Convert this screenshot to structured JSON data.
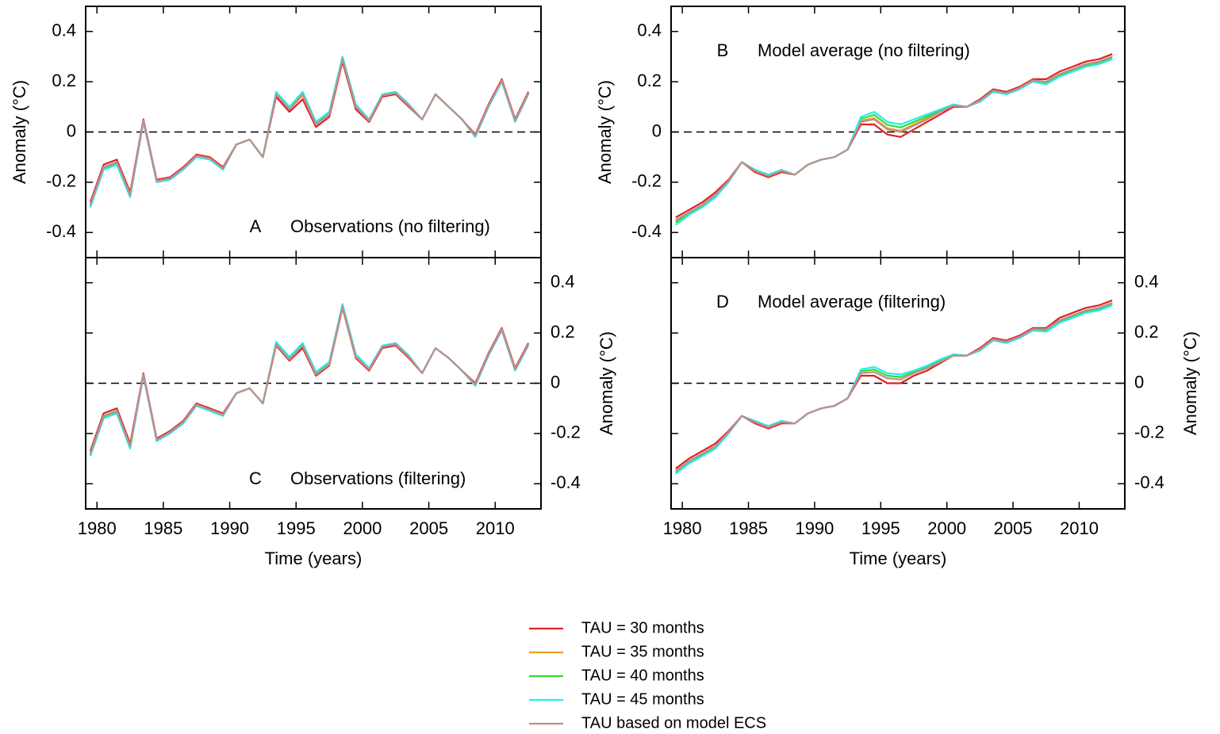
{
  "chart_data": [
    {
      "type": "line",
      "label": "A",
      "title": "Observations (no filtering)",
      "ylabel": "Anomaly (°C)",
      "yaxis_side": "left",
      "show_xticklabels": false,
      "x": [
        1979.5,
        1980.5,
        1981.5,
        1982.5,
        1983.5,
        1984.5,
        1985.5,
        1986.5,
        1987.5,
        1988.5,
        1989.5,
        1990.5,
        1991.5,
        1992.5,
        1993.5,
        1994.5,
        1995.5,
        1996.5,
        1997.5,
        1998.5,
        1999.5,
        2000.5,
        2001.5,
        2002.5,
        2003.5,
        2004.5,
        2005.5,
        2006.5,
        2007.5,
        2008.5,
        2009.5,
        2010.5,
        2011.5,
        2012.5
      ],
      "xlim": [
        1979.15,
        2013.45
      ],
      "xticks": [
        1980,
        1985,
        1990,
        1995,
        2000,
        2005,
        2010
      ],
      "ylim": [
        -0.5,
        0.5
      ],
      "yticks": [
        -0.4,
        -0.2,
        0,
        0.2,
        0.4
      ],
      "series": [
        {
          "name": "TAU = 30 months",
          "color": "#dd2222",
          "values": [
            -0.28,
            -0.13,
            -0.11,
            -0.24,
            0.05,
            -0.19,
            -0.18,
            -0.14,
            -0.09,
            -0.1,
            -0.14,
            -0.05,
            -0.03,
            -0.1,
            0.14,
            0.08,
            0.13,
            0.02,
            0.06,
            0.28,
            0.09,
            0.04,
            0.14,
            0.15,
            0.1,
            0.05,
            0.15,
            0.1,
            0.05,
            -0.01,
            0.11,
            0.21,
            0.05,
            0.16
          ]
        },
        {
          "name": "TAU = 35 months",
          "color": "#f0a020",
          "values": [
            -0.29,
            -0.14,
            -0.12,
            -0.25,
            0.045,
            -0.195,
            -0.185,
            -0.145,
            -0.095,
            -0.105,
            -0.145,
            -0.05,
            -0.03,
            -0.1,
            0.15,
            0.09,
            0.145,
            0.03,
            0.07,
            0.29,
            0.1,
            0.045,
            0.145,
            0.155,
            0.105,
            0.05,
            0.15,
            0.1,
            0.05,
            -0.015,
            0.105,
            0.205,
            0.045,
            0.155
          ]
        },
        {
          "name": "TAU = 40 months",
          "color": "#33dd33",
          "values": [
            -0.295,
            -0.145,
            -0.125,
            -0.255,
            0.042,
            -0.198,
            -0.188,
            -0.148,
            -0.098,
            -0.108,
            -0.148,
            -0.05,
            -0.03,
            -0.1,
            0.155,
            0.095,
            0.155,
            0.035,
            0.075,
            0.295,
            0.105,
            0.048,
            0.148,
            0.158,
            0.108,
            0.05,
            0.15,
            0.1,
            0.05,
            -0.018,
            0.102,
            0.202,
            0.042,
            0.152
          ]
        },
        {
          "name": "TAU = 45 months",
          "color": "#22eeee",
          "values": [
            -0.3,
            -0.15,
            -0.13,
            -0.26,
            0.04,
            -0.2,
            -0.19,
            -0.15,
            -0.1,
            -0.11,
            -0.15,
            -0.05,
            -0.03,
            -0.1,
            0.16,
            0.1,
            0.16,
            0.04,
            0.08,
            0.3,
            0.11,
            0.05,
            0.15,
            0.16,
            0.11,
            0.05,
            0.15,
            0.1,
            0.05,
            -0.02,
            0.1,
            0.2,
            0.04,
            0.15
          ]
        },
        {
          "name": "TAU based on model ECS",
          "color": "#bb9090",
          "values": [
            -0.29,
            -0.14,
            -0.12,
            -0.25,
            0.045,
            -0.195,
            -0.185,
            -0.145,
            -0.095,
            -0.105,
            -0.145,
            -0.05,
            -0.03,
            -0.1,
            0.15,
            0.09,
            0.15,
            0.03,
            0.07,
            0.29,
            0.1,
            0.045,
            0.145,
            0.155,
            0.105,
            0.05,
            0.15,
            0.1,
            0.05,
            -0.015,
            0.105,
            0.205,
            0.045,
            0.155
          ]
        }
      ]
    },
    {
      "type": "line",
      "label": "B",
      "title": "Model average (no filtering)",
      "ylabel": "Anomaly (°C)",
      "yaxis_side": "left",
      "show_xticklabels": false,
      "x": [
        1979.5,
        1980.5,
        1981.5,
        1982.5,
        1983.5,
        1984.5,
        1985.5,
        1986.5,
        1987.5,
        1988.5,
        1989.5,
        1990.5,
        1991.5,
        1992.5,
        1993.5,
        1994.5,
        1995.5,
        1996.5,
        1997.5,
        1998.5,
        1999.5,
        2000.5,
        2001.5,
        2002.5,
        2003.5,
        2004.5,
        2005.5,
        2006.5,
        2007.5,
        2008.5,
        2009.5,
        2010.5,
        2011.5,
        2012.5
      ],
      "xlim": [
        1979.15,
        2013.45
      ],
      "xticks": [
        1980,
        1985,
        1990,
        1995,
        2000,
        2005,
        2010
      ],
      "ylim": [
        -0.5,
        0.5
      ],
      "yticks": [
        -0.4,
        -0.2,
        0,
        0.2,
        0.4
      ],
      "series": [
        {
          "color": "#dd2222",
          "values": [
            -0.34,
            -0.31,
            -0.28,
            -0.24,
            -0.19,
            -0.12,
            -0.16,
            -0.18,
            -0.16,
            -0.17,
            -0.13,
            -0.11,
            -0.1,
            -0.07,
            0.03,
            0.03,
            -0.01,
            -0.02,
            0.01,
            0.04,
            0.07,
            0.1,
            0.1,
            0.13,
            0.17,
            0.16,
            0.18,
            0.21,
            0.21,
            0.24,
            0.26,
            0.28,
            0.29,
            0.31
          ]
        },
        {
          "color": "#f0a020",
          "values": [
            -0.355,
            -0.32,
            -0.29,
            -0.25,
            -0.195,
            -0.12,
            -0.155,
            -0.175,
            -0.155,
            -0.17,
            -0.13,
            -0.11,
            -0.1,
            -0.07,
            0.045,
            0.055,
            0.015,
            0.005,
            0.03,
            0.055,
            0.08,
            0.105,
            0.1,
            0.125,
            0.165,
            0.155,
            0.175,
            0.205,
            0.2,
            0.23,
            0.25,
            0.27,
            0.28,
            0.3
          ]
        },
        {
          "color": "#33dd33",
          "values": [
            -0.36,
            -0.325,
            -0.295,
            -0.255,
            -0.198,
            -0.12,
            -0.152,
            -0.172,
            -0.152,
            -0.17,
            -0.13,
            -0.11,
            -0.1,
            -0.07,
            0.052,
            0.068,
            0.028,
            0.018,
            0.04,
            0.062,
            0.085,
            0.108,
            0.1,
            0.122,
            0.162,
            0.152,
            0.172,
            0.202,
            0.195,
            0.225,
            0.245,
            0.265,
            0.275,
            0.295
          ]
        },
        {
          "color": "#22eeee",
          "values": [
            -0.37,
            -0.33,
            -0.3,
            -0.26,
            -0.2,
            -0.12,
            -0.15,
            -0.17,
            -0.15,
            -0.17,
            -0.13,
            -0.11,
            -0.1,
            -0.07,
            0.06,
            0.08,
            0.04,
            0.03,
            0.05,
            0.07,
            0.09,
            0.11,
            0.1,
            0.12,
            0.16,
            0.15,
            0.17,
            0.2,
            0.19,
            0.22,
            0.24,
            0.26,
            0.27,
            0.29
          ]
        },
        {
          "color": "#bb9090",
          "values": [
            -0.35,
            -0.32,
            -0.29,
            -0.25,
            -0.195,
            -0.12,
            -0.155,
            -0.175,
            -0.155,
            -0.17,
            -0.13,
            -0.11,
            -0.1,
            -0.07,
            0.04,
            0.05,
            0.01,
            0.0,
            0.025,
            0.05,
            0.08,
            0.105,
            0.1,
            0.125,
            0.165,
            0.155,
            0.175,
            0.205,
            0.2,
            0.23,
            0.25,
            0.27,
            0.28,
            0.3
          ]
        }
      ]
    },
    {
      "type": "line",
      "label": "C",
      "title": "Observations (filtering)",
      "ylabel": "Anomaly (°C)",
      "yaxis_side": "right",
      "show_xticklabels": true,
      "xlabel": "Time (years)",
      "x": [
        1979.5,
        1980.5,
        1981.5,
        1982.5,
        1983.5,
        1984.5,
        1985.5,
        1986.5,
        1987.5,
        1988.5,
        1989.5,
        1990.5,
        1991.5,
        1992.5,
        1993.5,
        1994.5,
        1995.5,
        1996.5,
        1997.5,
        1998.5,
        1999.5,
        2000.5,
        2001.5,
        2002.5,
        2003.5,
        2004.5,
        2005.5,
        2006.5,
        2007.5,
        2008.5,
        2009.5,
        2010.5,
        2011.5,
        2012.5
      ],
      "xlim": [
        1979.15,
        2013.45
      ],
      "xticks": [
        1980,
        1985,
        1990,
        1995,
        2000,
        2005,
        2010
      ],
      "ylim": [
        -0.5,
        0.5
      ],
      "yticks": [
        -0.4,
        -0.2,
        0,
        0.2,
        0.4
      ],
      "series": [
        {
          "color": "#dd2222",
          "values": [
            -0.27,
            -0.12,
            -0.1,
            -0.24,
            0.04,
            -0.22,
            -0.19,
            -0.15,
            -0.08,
            -0.1,
            -0.12,
            -0.04,
            -0.02,
            -0.08,
            0.15,
            0.09,
            0.14,
            0.03,
            0.07,
            0.3,
            0.1,
            0.05,
            0.14,
            0.15,
            0.1,
            0.04,
            0.14,
            0.1,
            0.05,
            0.0,
            0.12,
            0.22,
            0.06,
            0.16
          ]
        },
        {
          "color": "#f0a020",
          "values": [
            -0.28,
            -0.13,
            -0.11,
            -0.25,
            0.035,
            -0.225,
            -0.195,
            -0.155,
            -0.085,
            -0.105,
            -0.125,
            -0.04,
            -0.02,
            -0.08,
            0.155,
            0.095,
            0.15,
            0.035,
            0.075,
            0.305,
            0.105,
            0.055,
            0.145,
            0.155,
            0.105,
            0.04,
            0.14,
            0.1,
            0.05,
            -0.005,
            0.115,
            0.215,
            0.055,
            0.155
          ]
        },
        {
          "color": "#33dd33",
          "values": [
            -0.285,
            -0.135,
            -0.115,
            -0.255,
            0.032,
            -0.228,
            -0.198,
            -0.158,
            -0.088,
            -0.108,
            -0.128,
            -0.04,
            -0.02,
            -0.08,
            0.16,
            0.1,
            0.155,
            0.04,
            0.08,
            0.31,
            0.11,
            0.058,
            0.148,
            0.158,
            0.108,
            0.04,
            0.14,
            0.1,
            0.05,
            -0.008,
            0.112,
            0.212,
            0.052,
            0.152
          ]
        },
        {
          "color": "#22eeee",
          "values": [
            -0.29,
            -0.14,
            -0.12,
            -0.26,
            0.03,
            -0.23,
            -0.2,
            -0.16,
            -0.09,
            -0.11,
            -0.13,
            -0.04,
            -0.02,
            -0.08,
            0.165,
            0.105,
            0.16,
            0.045,
            0.085,
            0.315,
            0.115,
            0.06,
            0.15,
            0.16,
            0.11,
            0.04,
            0.14,
            0.1,
            0.05,
            -0.01,
            0.11,
            0.21,
            0.05,
            0.15
          ]
        },
        {
          "color": "#bb9090",
          "values": [
            -0.28,
            -0.13,
            -0.11,
            -0.25,
            0.035,
            -0.225,
            -0.195,
            -0.155,
            -0.085,
            -0.105,
            -0.125,
            -0.04,
            -0.02,
            -0.08,
            0.155,
            0.095,
            0.15,
            0.035,
            0.075,
            0.305,
            0.105,
            0.055,
            0.145,
            0.155,
            0.105,
            0.04,
            0.14,
            0.1,
            0.05,
            -0.005,
            0.115,
            0.215,
            0.055,
            0.155
          ]
        }
      ]
    },
    {
      "type": "line",
      "label": "D",
      "title": "Model average (filtering)",
      "ylabel": "Anomaly (°C)",
      "yaxis_side": "right",
      "show_xticklabels": true,
      "xlabel": "Time (years)",
      "x": [
        1979.5,
        1980.5,
        1981.5,
        1982.5,
        1983.5,
        1984.5,
        1985.5,
        1986.5,
        1987.5,
        1988.5,
        1989.5,
        1990.5,
        1991.5,
        1992.5,
        1993.5,
        1994.5,
        1995.5,
        1996.5,
        1997.5,
        1998.5,
        1999.5,
        2000.5,
        2001.5,
        2002.5,
        2003.5,
        2004.5,
        2005.5,
        2006.5,
        2007.5,
        2008.5,
        2009.5,
        2010.5,
        2011.5,
        2012.5
      ],
      "xlim": [
        1979.15,
        2013.45
      ],
      "xticks": [
        1980,
        1985,
        1990,
        1995,
        2000,
        2005,
        2010
      ],
      "ylim": [
        -0.5,
        0.5
      ],
      "yticks": [
        -0.4,
        -0.2,
        0,
        0.2,
        0.4
      ],
      "series": [
        {
          "color": "#dd2222",
          "values": [
            -0.34,
            -0.3,
            -0.27,
            -0.24,
            -0.19,
            -0.13,
            -0.16,
            -0.18,
            -0.16,
            -0.16,
            -0.12,
            -0.1,
            -0.09,
            -0.06,
            0.03,
            0.03,
            0.0,
            0.0,
            0.03,
            0.05,
            0.08,
            0.11,
            0.11,
            0.14,
            0.18,
            0.17,
            0.19,
            0.22,
            0.22,
            0.26,
            0.28,
            0.3,
            0.31,
            0.33
          ]
        },
        {
          "color": "#f0a020",
          "values": [
            -0.35,
            -0.31,
            -0.28,
            -0.25,
            -0.195,
            -0.13,
            -0.155,
            -0.175,
            -0.155,
            -0.16,
            -0.12,
            -0.1,
            -0.09,
            -0.06,
            0.04,
            0.045,
            0.02,
            0.015,
            0.04,
            0.06,
            0.085,
            0.11,
            0.11,
            0.135,
            0.175,
            0.165,
            0.185,
            0.215,
            0.215,
            0.25,
            0.27,
            0.29,
            0.3,
            0.32
          ]
        },
        {
          "color": "#33dd33",
          "values": [
            -0.355,
            -0.315,
            -0.285,
            -0.255,
            -0.198,
            -0.13,
            -0.152,
            -0.172,
            -0.152,
            -0.16,
            -0.12,
            -0.1,
            -0.09,
            -0.06,
            0.048,
            0.055,
            0.03,
            0.025,
            0.045,
            0.065,
            0.09,
            0.112,
            0.11,
            0.132,
            0.172,
            0.162,
            0.182,
            0.212,
            0.21,
            0.245,
            0.265,
            0.285,
            0.295,
            0.315
          ]
        },
        {
          "color": "#22eeee",
          "values": [
            -0.36,
            -0.32,
            -0.29,
            -0.26,
            -0.2,
            -0.13,
            -0.15,
            -0.17,
            -0.15,
            -0.16,
            -0.12,
            -0.1,
            -0.09,
            -0.06,
            0.055,
            0.065,
            0.04,
            0.035,
            0.05,
            0.07,
            0.095,
            0.115,
            0.11,
            0.13,
            0.17,
            0.16,
            0.18,
            0.21,
            0.205,
            0.24,
            0.26,
            0.28,
            0.29,
            0.31
          ]
        },
        {
          "color": "#bb9090",
          "values": [
            -0.35,
            -0.31,
            -0.28,
            -0.25,
            -0.195,
            -0.13,
            -0.155,
            -0.175,
            -0.155,
            -0.16,
            -0.12,
            -0.1,
            -0.09,
            -0.06,
            0.04,
            0.045,
            0.02,
            0.015,
            0.04,
            0.06,
            0.085,
            0.11,
            0.11,
            0.135,
            0.175,
            0.165,
            0.185,
            0.215,
            0.215,
            0.25,
            0.27,
            0.29,
            0.3,
            0.32
          ]
        }
      ]
    }
  ]
}
